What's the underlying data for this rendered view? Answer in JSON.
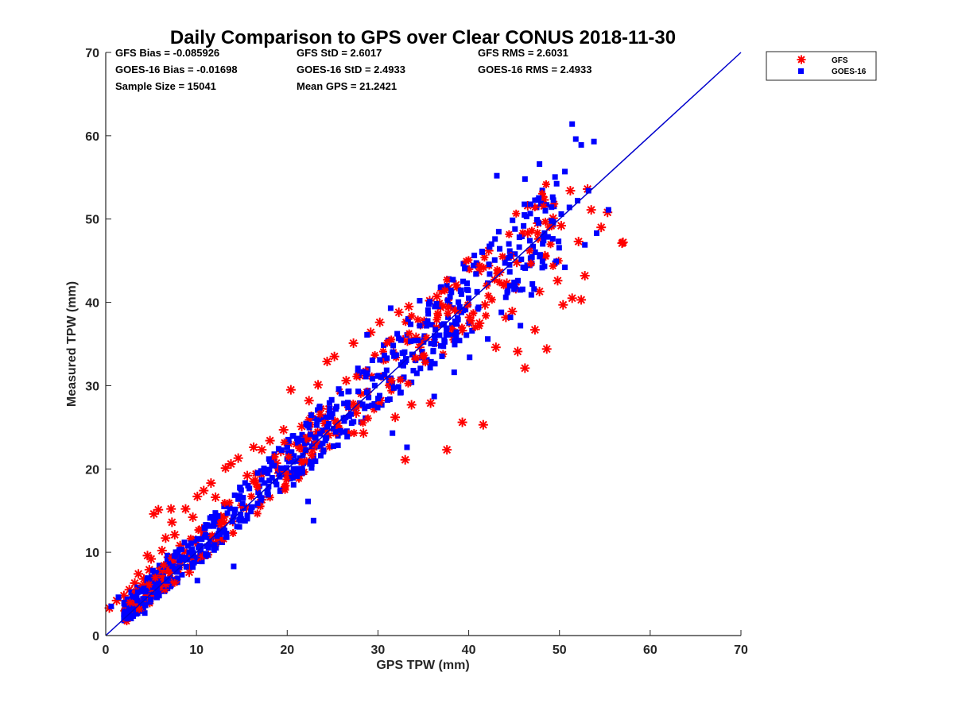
{
  "chart_data": {
    "type": "scatter",
    "title": "Daily Comparison to GPS over Clear CONUS 2018-11-30",
    "xlabel": "GPS TPW (mm)",
    "ylabel": "Measured TPW (mm)",
    "xlim": [
      0,
      70
    ],
    "ylim": [
      0,
      70
    ],
    "xticks": [
      "0",
      "10",
      "20",
      "30",
      "40",
      "50",
      "60",
      "70"
    ],
    "yticks": [
      "0",
      "10",
      "20",
      "30",
      "40",
      "50",
      "60",
      "70"
    ],
    "grid": false,
    "legend_position": "outside top-right",
    "stats": [
      [
        "GFS Bias = -0.085926",
        "GFS StD = 2.6017",
        "GFS RMS = 2.6031"
      ],
      [
        "GOES-16 Bias = -0.01698",
        "GOES-16 StD = 2.4933",
        "GOES-16 RMS = 2.4933"
      ],
      [
        "Sample Size = 15041",
        "Mean GPS = 21.2421",
        ""
      ]
    ],
    "reference_line": {
      "name": "1:1 line",
      "x": [
        0,
        70
      ],
      "y": [
        0,
        70
      ],
      "color": "#0000cc"
    },
    "series": [
      {
        "name": "GFS",
        "marker": "asterisk",
        "color": "#ff0000",
        "x": [
          0.4,
          1.2,
          2.0,
          2.6,
          3.2,
          3.6,
          4.2,
          4.8,
          5.0,
          5.3,
          5.8,
          6.2,
          6.6,
          6.9,
          7.3,
          7.6,
          8.2,
          8.8,
          9.6,
          10.1,
          10.8,
          11.6,
          12.3,
          13.2,
          13.8,
          14.6,
          15.6,
          16.3,
          17.2,
          18.1,
          18.8,
          19.6,
          20.4,
          21.6,
          22.4,
          23.4,
          24.4,
          25.2,
          26.5,
          27.3,
          28.0,
          29.2,
          30.2,
          31.3,
          32.3,
          33.4,
          34.6,
          35.7,
          36.9,
          37.8,
          38.6,
          39.3,
          40.1,
          41.2,
          42.2,
          43.4,
          44.2,
          45.3,
          46.5,
          47.6,
          48.3,
          49.3,
          50.2,
          51.2,
          52.1,
          53.1,
          54.6,
          55.3,
          56.9,
          33.0,
          37.6,
          39.3,
          41.6,
          24.3,
          26.8,
          25.4,
          45.4,
          46.2,
          50.4,
          51.4,
          52.4,
          48.6,
          47.3,
          44.1,
          31.9,
          28.4,
          35.8,
          30.3,
          27.6,
          21.8,
          19.1,
          15.5,
          10.6,
          12.3,
          8.2,
          9.2,
          6.5,
          7.2,
          4.6,
          3.1,
          14.0,
          17.2,
          20.6,
          22.8,
          24.2,
          25.6,
          28.8,
          33.7,
          36.2,
          38.4,
          41.8,
          43.0,
          44.8,
          47.8,
          49.8,
          52.8,
          53.5,
          57.0,
          46.5,
          48.4,
          41.1,
          36.5,
          34.2,
          24.6,
          19.3,
          12.1,
          7.0
        ],
        "y": [
          3.3,
          4.2,
          4.8,
          5.5,
          6.3,
          7.4,
          6.8,
          7.9,
          9.2,
          14.6,
          15.1,
          10.2,
          11.7,
          9.4,
          13.6,
          12.1,
          10.8,
          15.2,
          14.2,
          16.7,
          17.4,
          18.3,
          13.9,
          20.1,
          20.6,
          21.3,
          19.2,
          22.6,
          22.3,
          23.4,
          20.7,
          24.7,
          29.5,
          25.1,
          28.2,
          30.1,
          32.9,
          33.5,
          30.6,
          35.1,
          31.2,
          36.4,
          37.6,
          35.3,
          38.8,
          39.5,
          34.6,
          40.2,
          39.4,
          41.7,
          42.1,
          36.6,
          38.2,
          37.5,
          46.2,
          43.6,
          42.3,
          44.8,
          51.6,
          49.5,
          52.3,
          50.1,
          49.2,
          53.4,
          47.3,
          53.6,
          49.0,
          50.8,
          47.1,
          21.1,
          22.3,
          25.6,
          25.3,
          24.6,
          27.4,
          25.1,
          34.1,
          32.1,
          39.7,
          40.5,
          40.3,
          34.4,
          36.7,
          38.2,
          26.2,
          24.3,
          27.9,
          28.2,
          26.7,
          22.4,
          19.5,
          15.3,
          12.8,
          11.6,
          8.8,
          7.6,
          6.6,
          15.2,
          9.6,
          4.1,
          13.7,
          16.3,
          19.5,
          22.3,
          26.1,
          25.5,
          29.2,
          27.7,
          35.2,
          36.4,
          39.7,
          34.6,
          38.9,
          41.3,
          42.6,
          43.2,
          51.1,
          47.2,
          48.3,
          45.6,
          43.7,
          40.7,
          35.8,
          27.2,
          22.1,
          16.6,
          8.2
        ]
      },
      {
        "name": "GOES-16",
        "marker": "square",
        "color": "#0000ff",
        "x": [
          0.6,
          1.4,
          2.1,
          2.8,
          3.5,
          4.1,
          4.6,
          5.2,
          5.9,
          6.3,
          6.8,
          7.5,
          8.1,
          8.7,
          9.4,
          10.2,
          10.9,
          11.6,
          12.4,
          13.1,
          14.2,
          15.1,
          16.0,
          16.8,
          17.9,
          18.7,
          19.8,
          20.7,
          21.4,
          22.5,
          23.3,
          24.2,
          25.1,
          26.2,
          27.1,
          28.0,
          28.9,
          30.1,
          31.2,
          32.0,
          32.8,
          33.9,
          35.1,
          36.1,
          37.0,
          38.1,
          39.2,
          40.0,
          41.0,
          42.1,
          43.2,
          44.3,
          45.1,
          46.0,
          47.1,
          48.2,
          49.3,
          50.2,
          51.1,
          52.0,
          53.2,
          54.1,
          55.4,
          51.4,
          51.8,
          52.4,
          53.8,
          50.6,
          47.8,
          46.2,
          43.1,
          44.5,
          42.9,
          37.8,
          33.2,
          31.6,
          22.9,
          22.3,
          15.6,
          14.1,
          10.1,
          4.3,
          28.8,
          31.4,
          34.6,
          39.8,
          40.8,
          45.1,
          48.6,
          45.7,
          42.1,
          40.1,
          43.6,
          47.2,
          50.6,
          52.8,
          18.3,
          20.1,
          24.4,
          26.7,
          36.2,
          38.4,
          44.6,
          46.9,
          49.5,
          12.8,
          8.4,
          5.6,
          7.9,
          10.6,
          17.1,
          21.8,
          29.6,
          33.7,
          35.4
        ],
        "y": [
          3.5,
          4.6,
          3.9,
          5.2,
          5.8,
          4.4,
          6.9,
          7.8,
          8.4,
          7.1,
          9.6,
          8.2,
          10.3,
          9.1,
          11.4,
          10.6,
          12.9,
          11.7,
          13.8,
          12.6,
          14.7,
          15.3,
          14.9,
          17.2,
          16.8,
          18.5,
          19.3,
          18.1,
          21.3,
          20.6,
          22.7,
          23.4,
          24.8,
          26.1,
          25.5,
          27.9,
          29.4,
          31.2,
          30.1,
          33.6,
          32.4,
          31.8,
          35.7,
          34.2,
          37.3,
          36.1,
          38.8,
          40.5,
          39.2,
          42.3,
          43.6,
          41.4,
          45.8,
          44.2,
          46.7,
          47.9,
          49.3,
          50.6,
          51.4,
          52.2,
          53.4,
          48.3,
          51.1,
          61.4,
          59.6,
          58.9,
          59.3,
          55.7,
          56.6,
          54.8,
          55.2,
          44.5,
          47.6,
          42.8,
          22.6,
          24.3,
          13.8,
          16.1,
          14.2,
          8.3,
          6.6,
          2.7,
          36.1,
          39.3,
          40.2,
          44.1,
          43.4,
          48.8,
          51.7,
          37.2,
          35.6,
          33.4,
          38.8,
          41.6,
          44.2,
          46.9,
          20.5,
          21.9,
          25.3,
          27.4,
          28.7,
          31.6,
          38.2,
          40.9,
          44.7,
          11.2,
          7.3,
          4.8,
          6.4,
          8.9,
          16.2,
          19.6,
          27.8,
          30.4,
          33.1
        ]
      }
    ]
  }
}
